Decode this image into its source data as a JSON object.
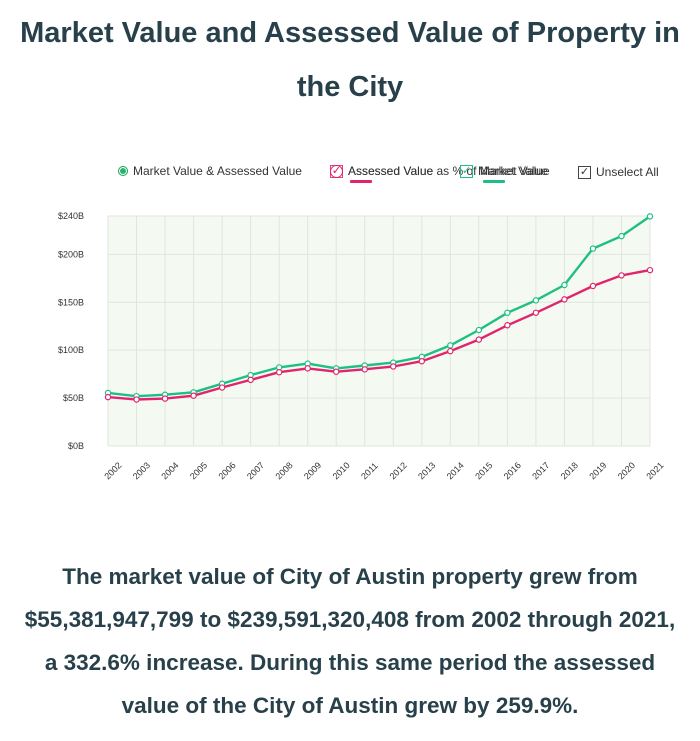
{
  "title": "Market Value and Assessed Value of Property in the City",
  "controls": {
    "market_assessed_label": "Market Value & Assessed Value",
    "pct_label": "Assessed Value as % of Market Value",
    "assessed_label": "Assessed Value",
    "market_label": "Market Value",
    "unselect_label": "Unselect All",
    "check_glyph": "✓"
  },
  "colors": {
    "market": "#1fbf84",
    "assessed": "#e0256e",
    "plot_bg": "#f4faf2",
    "grid": "#dfe6dd"
  },
  "chart_data": {
    "type": "line",
    "x": [
      "2002",
      "2003",
      "2004",
      "2005",
      "2006",
      "2007",
      "2008",
      "2009",
      "2010",
      "2011",
      "2012",
      "2013",
      "2014",
      "2015",
      "2016",
      "2017",
      "2018",
      "2019",
      "2020",
      "2021"
    ],
    "series": [
      {
        "name": "Market Value",
        "values": [
          55.4,
          52,
          53.5,
          56,
          65,
          74,
          82,
          86,
          81,
          84,
          87,
          93,
          105,
          121,
          139,
          152,
          168,
          206,
          219,
          239.6
        ]
      },
      {
        "name": "Assessed Value",
        "values": [
          51,
          48.5,
          49.5,
          52.5,
          61,
          69,
          77,
          81,
          77.5,
          80,
          83,
          88.5,
          99,
          111,
          126,
          139,
          153,
          167,
          178,
          183.5
        ]
      }
    ],
    "yticks": [
      "$0B",
      "$50B",
      "$100B",
      "$150B",
      "$200B",
      "$240B"
    ],
    "ytick_values": [
      0,
      50,
      100,
      150,
      200,
      240
    ],
    "ylim": [
      0,
      240
    ],
    "grid": true,
    "legend": "top"
  },
  "summary": "The market value of City of Austin property grew from $55,381,947,799 to $239,591,320,408 from 2002 through 2021, a 332.6% increase. During this same period the assessed value of the City of Austin grew by 259.9%."
}
